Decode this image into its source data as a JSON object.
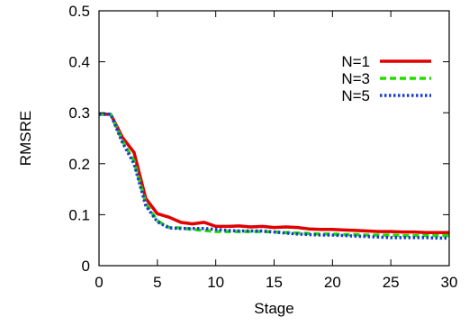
{
  "chart_data": {
    "type": "line",
    "title": "",
    "xlabel": "Stage",
    "ylabel": "RMSRE",
    "xlim": [
      0,
      30
    ],
    "ylim": [
      0,
      0.5
    ],
    "xticks": [
      0,
      5,
      10,
      15,
      20,
      25,
      30
    ],
    "yticks": [
      0,
      0.1,
      0.2,
      0.3,
      0.4,
      0.5
    ],
    "xtick_labels": [
      "0",
      "5",
      "10",
      "15",
      "20",
      "25",
      "30"
    ],
    "ytick_labels": [
      "0",
      "0.1",
      "0.2",
      "0.3",
      "0.4",
      "0.5"
    ],
    "grid": false,
    "legend_position": "top-right",
    "series": [
      {
        "name": "N=1",
        "color": "#e00000",
        "dash": "solid",
        "x": [
          0,
          1,
          2,
          3,
          4,
          5,
          6,
          7,
          8,
          9,
          10,
          11,
          12,
          13,
          14,
          15,
          16,
          17,
          18,
          19,
          20,
          21,
          22,
          23,
          24,
          25,
          26,
          27,
          28,
          29,
          30
        ],
        "values": [
          0.297,
          0.297,
          0.252,
          0.222,
          0.132,
          0.102,
          0.095,
          0.085,
          0.082,
          0.085,
          0.077,
          0.077,
          0.078,
          0.076,
          0.077,
          0.075,
          0.076,
          0.075,
          0.072,
          0.071,
          0.071,
          0.07,
          0.069,
          0.068,
          0.067,
          0.067,
          0.066,
          0.066,
          0.065,
          0.065,
          0.065
        ]
      },
      {
        "name": "N=3",
        "color": "#22dd00",
        "dash": "dashed",
        "x": [
          0,
          1,
          2,
          3,
          4,
          5,
          6,
          7,
          8,
          9,
          10,
          11,
          12,
          13,
          14,
          15,
          16,
          17,
          18,
          19,
          20,
          21,
          22,
          23,
          24,
          25,
          26,
          27,
          28,
          29,
          30
        ],
        "values": [
          0.297,
          0.297,
          0.245,
          0.205,
          0.122,
          0.088,
          0.075,
          0.074,
          0.071,
          0.069,
          0.067,
          0.067,
          0.067,
          0.067,
          0.067,
          0.066,
          0.065,
          0.064,
          0.063,
          0.062,
          0.062,
          0.061,
          0.061,
          0.06,
          0.06,
          0.06,
          0.059,
          0.059,
          0.059,
          0.059,
          0.059
        ]
      },
      {
        "name": "N=5",
        "color": "#1a3ad8",
        "dash": "dotted",
        "x": [
          0,
          1,
          2,
          3,
          4,
          5,
          6,
          7,
          8,
          9,
          10,
          11,
          12,
          13,
          14,
          15,
          16,
          17,
          18,
          19,
          20,
          21,
          22,
          23,
          24,
          25,
          26,
          27,
          28,
          29,
          30
        ],
        "values": [
          0.297,
          0.297,
          0.242,
          0.2,
          0.118,
          0.086,
          0.074,
          0.073,
          0.073,
          0.073,
          0.071,
          0.069,
          0.068,
          0.068,
          0.068,
          0.066,
          0.064,
          0.062,
          0.061,
          0.06,
          0.06,
          0.059,
          0.058,
          0.057,
          0.056,
          0.055,
          0.055,
          0.055,
          0.055,
          0.054,
          0.054
        ]
      }
    ]
  }
}
